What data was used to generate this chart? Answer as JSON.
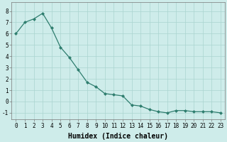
{
  "x": [
    0,
    1,
    2,
    3,
    4,
    5,
    6,
    7,
    8,
    9,
    10,
    11,
    12,
    13,
    14,
    15,
    16,
    17,
    18,
    19,
    20,
    21,
    22,
    23
  ],
  "y": [
    6.0,
    7.0,
    7.3,
    7.8,
    6.5,
    4.8,
    3.9,
    2.8,
    1.7,
    1.3,
    0.7,
    0.6,
    0.5,
    -0.3,
    -0.4,
    -0.7,
    -0.9,
    -1.0,
    -0.8,
    -0.8,
    -0.9,
    -0.9,
    -0.9,
    -1.0
  ],
  "line_color": "#2e7d6e",
  "marker": "D",
  "marker_size": 2.0,
  "bg_color": "#ceecea",
  "grid_color": "#aad4cf",
  "xlabel": "Humidex (Indice chaleur)",
  "xlim": [
    -0.5,
    23.5
  ],
  "ylim": [
    -1.6,
    8.8
  ],
  "yticks": [
    -1,
    0,
    1,
    2,
    3,
    4,
    5,
    6,
    7,
    8
  ],
  "xtick_labels": [
    "0",
    "1",
    "2",
    "3",
    "4",
    "5",
    "6",
    "7",
    "8",
    "9",
    "10",
    "11",
    "12",
    "13",
    "14",
    "15",
    "16",
    "17",
    "18",
    "19",
    "20",
    "21",
    "22",
    "23"
  ],
  "tick_fontsize": 5.5,
  "label_fontsize": 7.0,
  "line_width": 0.9
}
